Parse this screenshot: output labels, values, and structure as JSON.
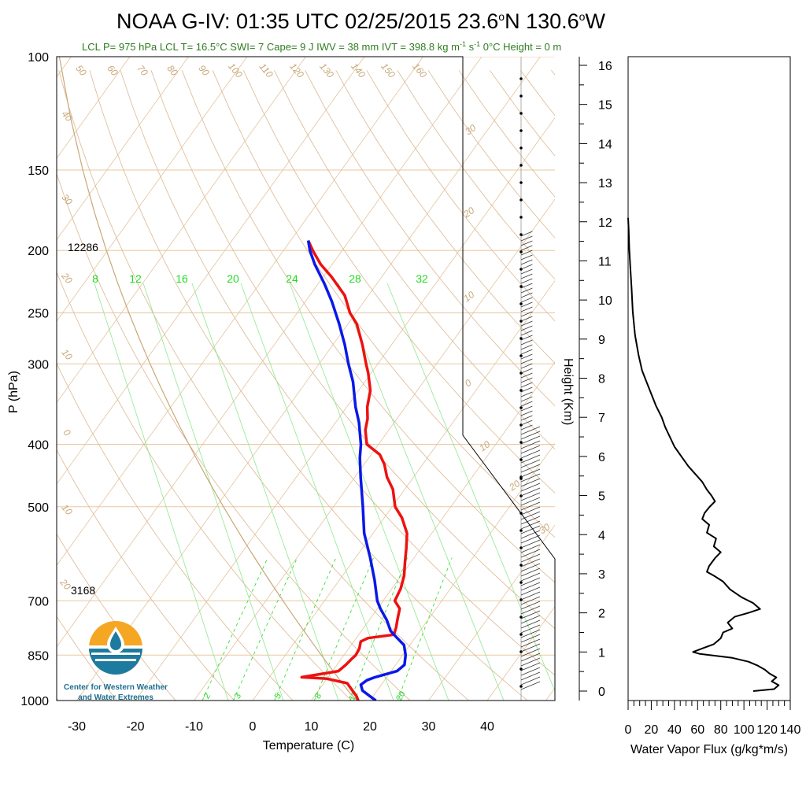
{
  "header": {
    "title_main": "NOAA G-IV: 01:35 UTC 02/25/2015  23.6",
    "title_lat_unit": "N 130.6",
    "title_lon_unit": "W",
    "deg": "o",
    "subtitle": "LCL P= 975 hPa  LCL T= 16.5°C  SWI= 7  Cape= 9 J  IWV = 38 mm  IVT = 398.8 kg m",
    "subtitle_exp1": "-1",
    "subtitle_mid": " s",
    "subtitle_exp2": "-1",
    "subtitle_end": "  0°C Height = 0 m"
  },
  "logo": {
    "line1": "Center for Western Weather",
    "line2": "and Water Extremes"
  },
  "colors": {
    "temperature": "#ee1111",
    "dewpoint": "#0a18e8",
    "mixing": "#22dd22",
    "adiabat": "#c8a878",
    "flux": "#000000"
  },
  "chart_data": [
    {
      "type": "line",
      "title": "Skew-T Log-P",
      "xlabel": "Temperature (C)",
      "ylabel": "P (hPa)",
      "x_ticks": [
        "-30",
        "-20",
        "-10",
        "0",
        "10",
        "20",
        "30",
        "40"
      ],
      "y_ticks": [
        "100",
        "150",
        "200",
        "250",
        "300",
        "400",
        "500",
        "700",
        "850",
        "1000"
      ],
      "ylim": [
        1000,
        100
      ],
      "y_scale": "log",
      "height_labels": [
        "12286",
        "3168"
      ],
      "mixing_ratio_labels": [
        "8",
        "12",
        "16",
        "20",
        "24",
        "28",
        "32"
      ],
      "mixing_ratio_bottom_labels": [
        "2",
        "3",
        "5",
        "8",
        "12",
        "20"
      ],
      "adiabat_labels": [
        "50",
        "60",
        "70",
        "80",
        "90",
        "100",
        "110",
        "120",
        "130",
        "140",
        "150",
        "160",
        "40",
        "30",
        "20",
        "10",
        "0",
        "10",
        "20",
        "30",
        "20",
        "10",
        "0",
        "10",
        "20",
        "30"
      ],
      "series": [
        {
          "name": "Temperature",
          "points": [
            {
              "p": 1000,
              "t": 18.0
            },
            {
              "p": 985,
              "t": 17.2
            },
            {
              "p": 965,
              "t": 15.8
            },
            {
              "p": 940,
              "t": 14.0
            },
            {
              "p": 925,
              "t": 10.0
            },
            {
              "p": 920,
              "t": 5.5
            },
            {
              "p": 900,
              "t": 11.0
            },
            {
              "p": 880,
              "t": 11.5
            },
            {
              "p": 860,
              "t": 11.8
            },
            {
              "p": 850,
              "t": 12.0
            },
            {
              "p": 830,
              "t": 11.8
            },
            {
              "p": 810,
              "t": 11.2
            },
            {
              "p": 800,
              "t": 12.0
            },
            {
              "p": 790,
              "t": 16.0
            },
            {
              "p": 770,
              "t": 15.5
            },
            {
              "p": 750,
              "t": 14.8
            },
            {
              "p": 720,
              "t": 13.8
            },
            {
              "p": 700,
              "t": 12.0
            },
            {
              "p": 670,
              "t": 11.5
            },
            {
              "p": 640,
              "t": 10.5
            },
            {
              "p": 610,
              "t": 9.0
            },
            {
              "p": 580,
              "t": 7.5
            },
            {
              "p": 550,
              "t": 5.8
            },
            {
              "p": 520,
              "t": 3.0
            },
            {
              "p": 500,
              "t": 0.5
            },
            {
              "p": 470,
              "t": -2.0
            },
            {
              "p": 450,
              "t": -4.5
            },
            {
              "p": 430,
              "t": -6.5
            },
            {
              "p": 415,
              "t": -8.5
            },
            {
              "p": 400,
              "t": -12.0
            },
            {
              "p": 380,
              "t": -14.0
            },
            {
              "p": 365,
              "t": -15.0
            },
            {
              "p": 350,
              "t": -16.5
            },
            {
              "p": 330,
              "t": -18.0
            },
            {
              "p": 310,
              "t": -20.5
            },
            {
              "p": 300,
              "t": -22.0
            },
            {
              "p": 280,
              "t": -25.0
            },
            {
              "p": 260,
              "t": -28.5
            },
            {
              "p": 250,
              "t": -31.0
            },
            {
              "p": 235,
              "t": -34.0
            },
            {
              "p": 220,
              "t": -38.5
            },
            {
              "p": 210,
              "t": -42.0
            },
            {
              "p": 200,
              "t": -45.0
            },
            {
              "p": 193,
              "t": -47.0
            }
          ]
        },
        {
          "name": "Dewpoint",
          "points": [
            {
              "p": 1000,
              "t": 21.0
            },
            {
              "p": 985,
              "t": 19.5
            },
            {
              "p": 965,
              "t": 17.5
            },
            {
              "p": 945,
              "t": 16.5
            },
            {
              "p": 930,
              "t": 17.0
            },
            {
              "p": 920,
              "t": 18.0
            },
            {
              "p": 900,
              "t": 21.0
            },
            {
              "p": 880,
              "t": 21.5
            },
            {
              "p": 850,
              "t": 20.5
            },
            {
              "p": 820,
              "t": 19.0
            },
            {
              "p": 800,
              "t": 17.0
            },
            {
              "p": 780,
              "t": 15.0
            },
            {
              "p": 750,
              "t": 13.0
            },
            {
              "p": 720,
              "t": 10.5
            },
            {
              "p": 700,
              "t": 9.0
            },
            {
              "p": 650,
              "t": 6.0
            },
            {
              "p": 600,
              "t": 2.5
            },
            {
              "p": 550,
              "t": -1.5
            },
            {
              "p": 500,
              "t": -5.0
            },
            {
              "p": 450,
              "t": -9.0
            },
            {
              "p": 420,
              "t": -11.5
            },
            {
              "p": 400,
              "t": -13.0
            },
            {
              "p": 370,
              "t": -16.0
            },
            {
              "p": 350,
              "t": -18.5
            },
            {
              "p": 320,
              "t": -22.0
            },
            {
              "p": 300,
              "t": -25.0
            },
            {
              "p": 280,
              "t": -28.0
            },
            {
              "p": 260,
              "t": -31.5
            },
            {
              "p": 240,
              "t": -35.5
            },
            {
              "p": 225,
              "t": -39.0
            },
            {
              "p": 210,
              "t": -43.0
            },
            {
              "p": 200,
              "t": -45.5
            },
            {
              "p": 193,
              "t": -47.0
            }
          ]
        }
      ]
    },
    {
      "type": "line",
      "title": "",
      "xlabel": "Water Vapor Flux (g/kg*m/s)",
      "ylabel": "Height (Km)",
      "x_ticks": [
        "0",
        "20",
        "40",
        "60",
        "80",
        "100",
        "120",
        "140"
      ],
      "y_ticks": [
        "0",
        "1",
        "2",
        "3",
        "4",
        "5",
        "6",
        "7",
        "8",
        "9",
        "10",
        "11",
        "12",
        "13",
        "14",
        "15",
        "16"
      ],
      "xlim": [
        0,
        140
      ],
      "ylim": [
        0,
        16.3
      ],
      "series": [
        {
          "name": "Water Vapor Flux",
          "points": [
            {
              "x": 108,
              "h": 0.0
            },
            {
              "x": 126,
              "h": 0.05
            },
            {
              "x": 130,
              "h": 0.15
            },
            {
              "x": 124,
              "h": 0.25
            },
            {
              "x": 128,
              "h": 0.35
            },
            {
              "x": 122,
              "h": 0.45
            },
            {
              "x": 118,
              "h": 0.55
            },
            {
              "x": 112,
              "h": 0.65
            },
            {
              "x": 104,
              "h": 0.75
            },
            {
              "x": 90,
              "h": 0.85
            },
            {
              "x": 62,
              "h": 0.95
            },
            {
              "x": 56,
              "h": 1.0
            },
            {
              "x": 65,
              "h": 1.1
            },
            {
              "x": 74,
              "h": 1.2
            },
            {
              "x": 80,
              "h": 1.35
            },
            {
              "x": 82,
              "h": 1.5
            },
            {
              "x": 90,
              "h": 1.6
            },
            {
              "x": 86,
              "h": 1.75
            },
            {
              "x": 92,
              "h": 1.9
            },
            {
              "x": 104,
              "h": 2.0
            },
            {
              "x": 114,
              "h": 2.1
            },
            {
              "x": 108,
              "h": 2.25
            },
            {
              "x": 98,
              "h": 2.4
            },
            {
              "x": 88,
              "h": 2.6
            },
            {
              "x": 82,
              "h": 2.8
            },
            {
              "x": 74,
              "h": 2.95
            },
            {
              "x": 68,
              "h": 3.05
            },
            {
              "x": 70,
              "h": 3.2
            },
            {
              "x": 75,
              "h": 3.4
            },
            {
              "x": 80,
              "h": 3.55
            },
            {
              "x": 74,
              "h": 3.7
            },
            {
              "x": 76,
              "h": 3.9
            },
            {
              "x": 68,
              "h": 4.05
            },
            {
              "x": 70,
              "h": 4.25
            },
            {
              "x": 64,
              "h": 4.4
            },
            {
              "x": 66,
              "h": 4.55
            },
            {
              "x": 70,
              "h": 4.7
            },
            {
              "x": 75,
              "h": 4.85
            },
            {
              "x": 72,
              "h": 5.0
            },
            {
              "x": 68,
              "h": 5.15
            },
            {
              "x": 64,
              "h": 5.35
            },
            {
              "x": 58,
              "h": 5.55
            },
            {
              "x": 52,
              "h": 5.75
            },
            {
              "x": 46,
              "h": 6.0
            },
            {
              "x": 40,
              "h": 6.25
            },
            {
              "x": 36,
              "h": 6.5
            },
            {
              "x": 32,
              "h": 6.75
            },
            {
              "x": 29,
              "h": 7.0
            },
            {
              "x": 24,
              "h": 7.3
            },
            {
              "x": 20,
              "h": 7.6
            },
            {
              "x": 16,
              "h": 7.9
            },
            {
              "x": 12,
              "h": 8.2
            },
            {
              "x": 9,
              "h": 8.6
            },
            {
              "x": 6,
              "h": 9.1
            },
            {
              "x": 4,
              "h": 9.7
            },
            {
              "x": 3,
              "h": 10.3
            },
            {
              "x": 2,
              "h": 10.8
            },
            {
              "x": 1,
              "h": 11.3
            },
            {
              "x": 0.5,
              "h": 11.8
            },
            {
              "x": 0,
              "h": 12.1
            }
          ]
        }
      ]
    }
  ]
}
